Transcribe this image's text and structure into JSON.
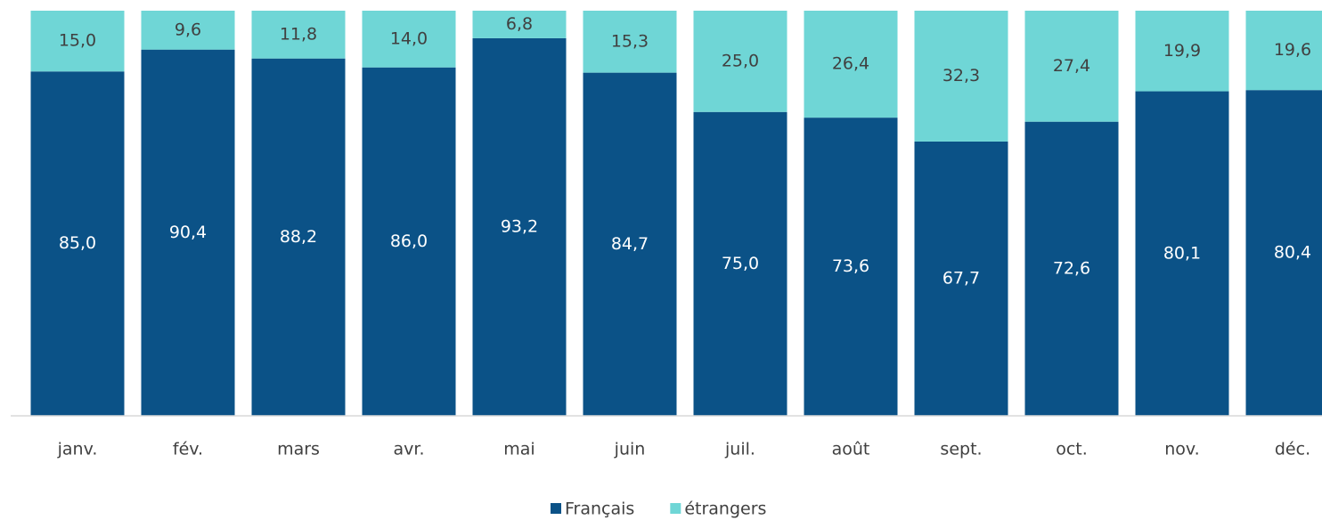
{
  "chart_data": {
    "type": "stacked_bar",
    "categories": [
      "janv.",
      "fév.",
      "mars",
      "avr.",
      "mai",
      "juin",
      "juil.",
      "août",
      "sept.",
      "oct.",
      "nov.",
      "déc."
    ],
    "series": [
      {
        "name": "Français",
        "color": "#0b5287",
        "values": [
          85.0,
          90.4,
          88.2,
          86.0,
          93.2,
          84.7,
          75.0,
          73.6,
          67.7,
          72.6,
          80.1,
          80.4
        ],
        "value_labels": [
          "85,0",
          "90,4",
          "88,2",
          "86,0",
          "93,2",
          "84,7",
          "75,0",
          "73,6",
          "67,7",
          "72,6",
          "80,1",
          "80,4"
        ]
      },
      {
        "name": "étrangers",
        "color": "#6fd6d6",
        "values": [
          15.0,
          9.6,
          11.8,
          14.0,
          6.8,
          15.3,
          25.0,
          26.4,
          32.3,
          27.4,
          19.9,
          19.6
        ],
        "value_labels": [
          "15,0",
          "9,6",
          "11,8",
          "14,0",
          "6,8",
          "15,3",
          "25,0",
          "26,4",
          "32,3",
          "27,4",
          "19,9",
          "19,6"
        ]
      }
    ],
    "ylim": [
      0,
      100
    ],
    "legend": "bottom"
  }
}
